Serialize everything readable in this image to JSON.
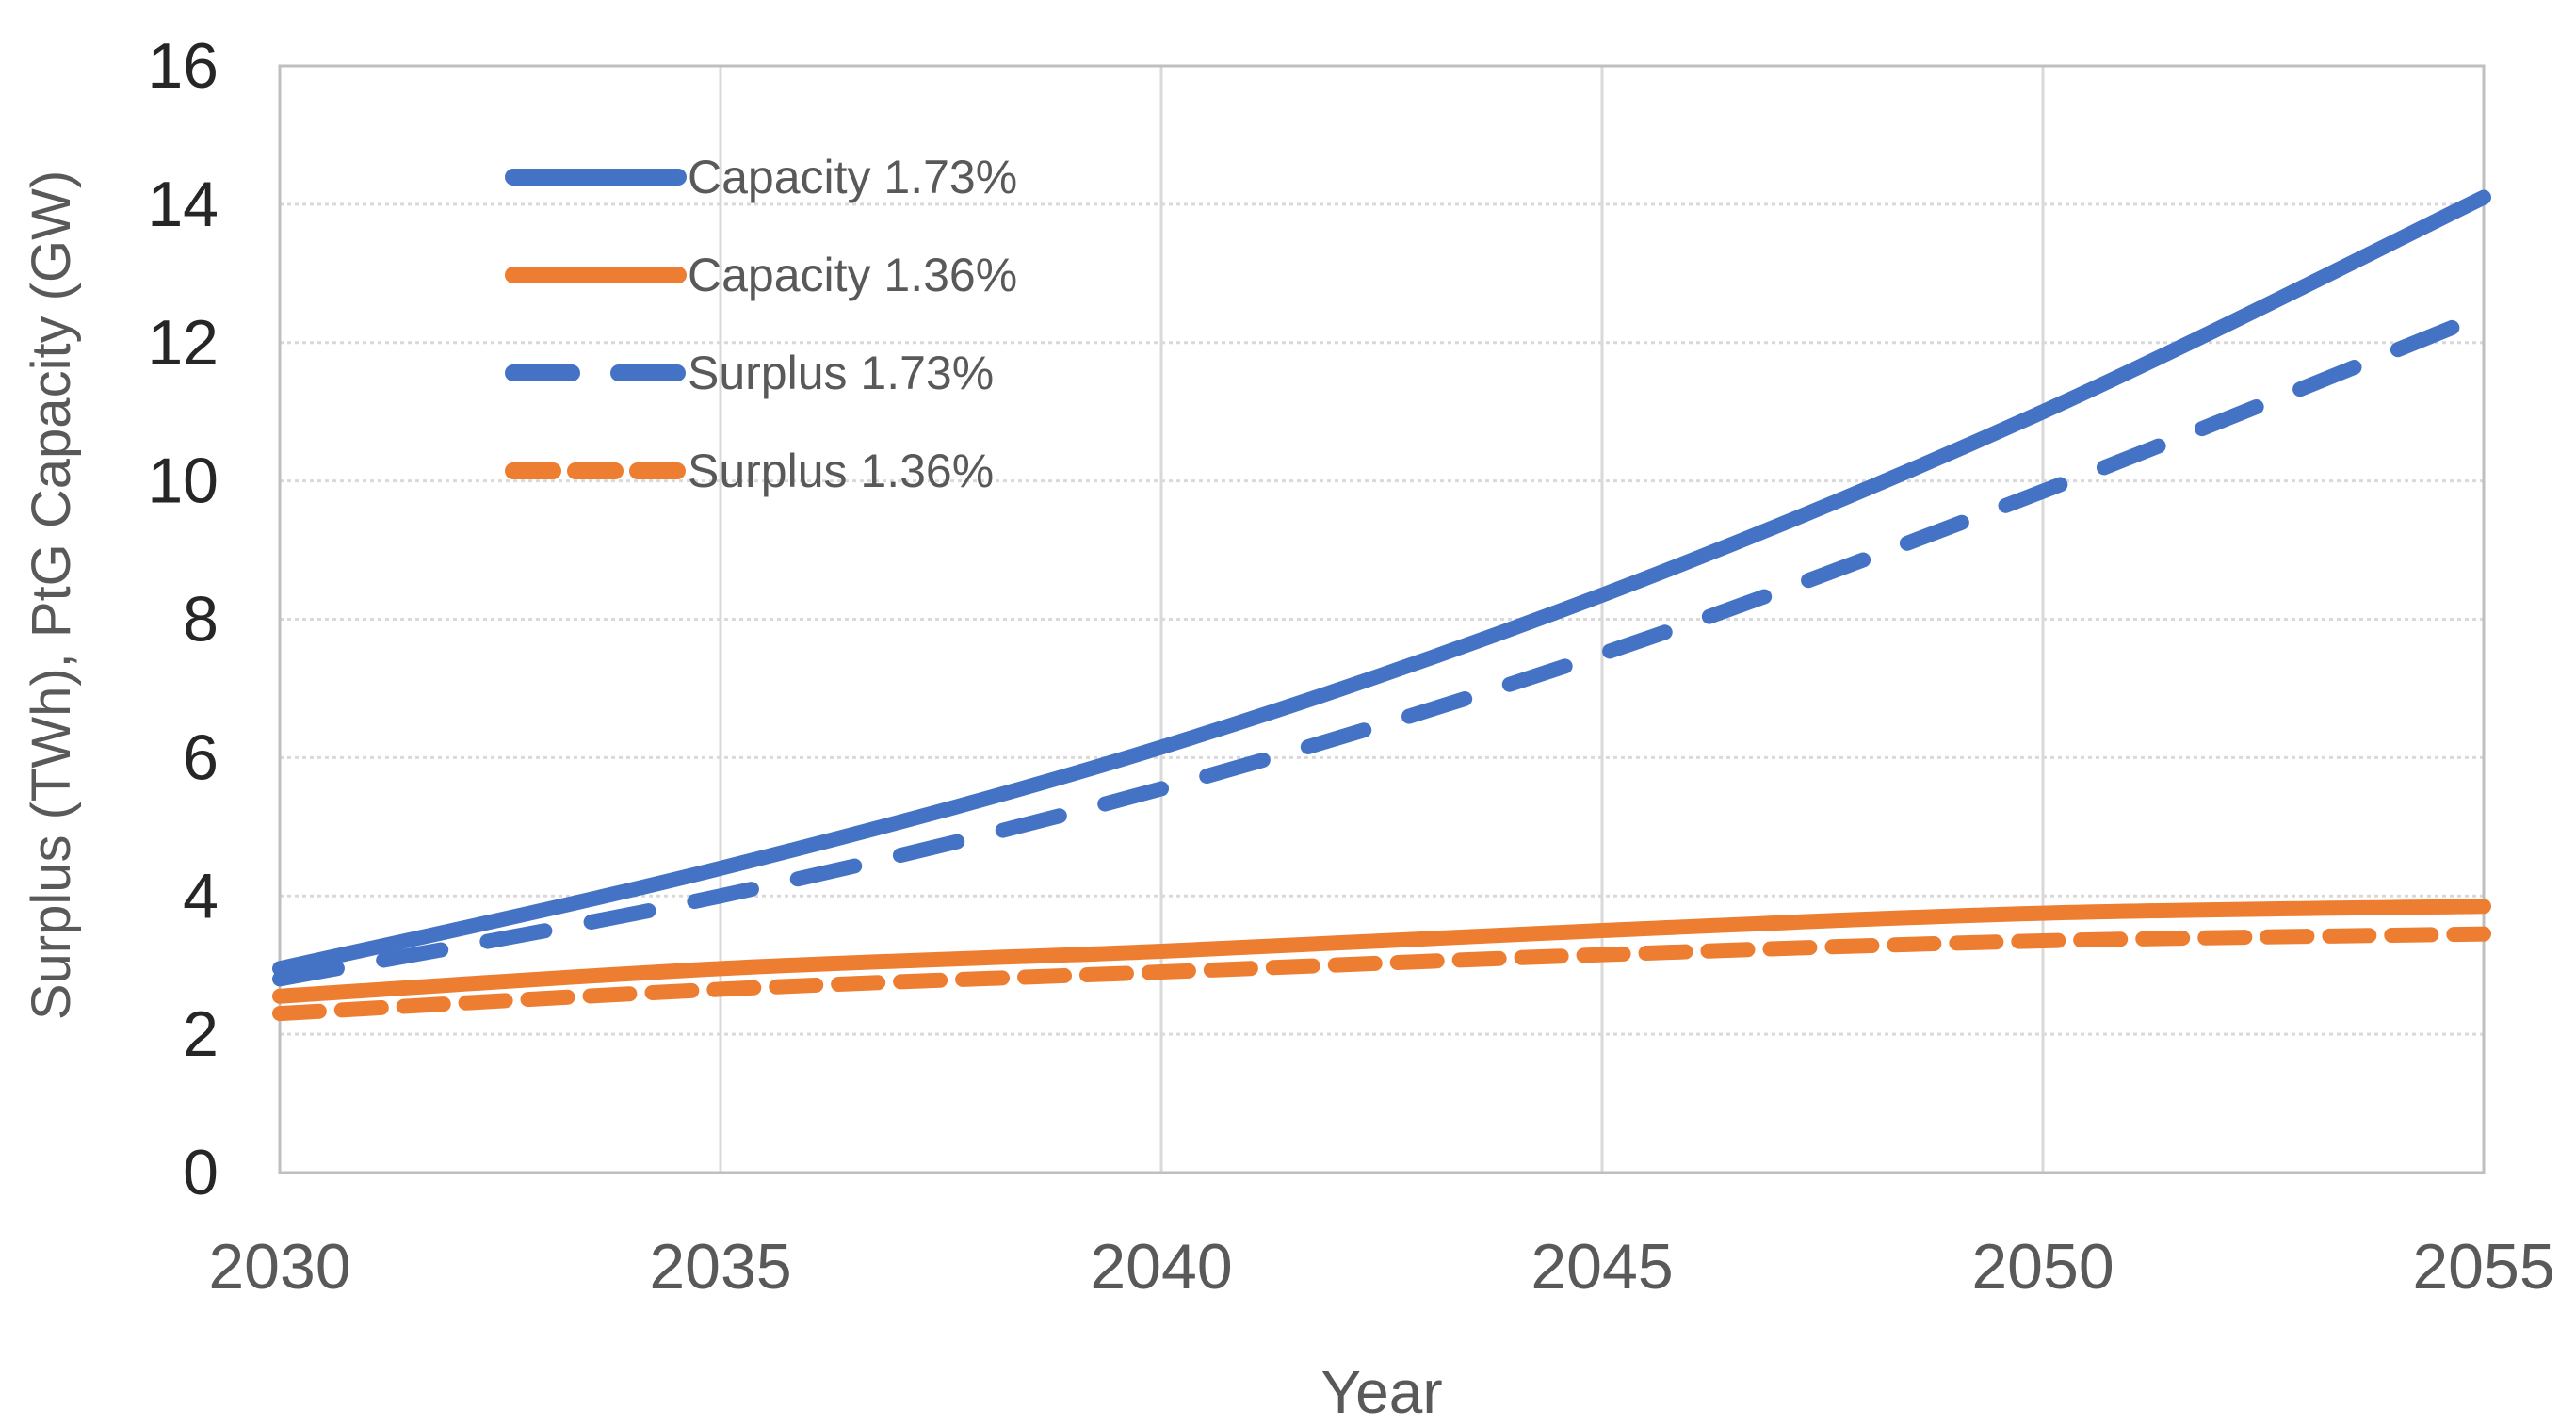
{
  "figure": {
    "background": "#FFFFFF"
  },
  "chart_data": {
    "type": "line",
    "title": "",
    "xlabel": "Year",
    "ylabel": "Surplus (TWh), PtG Capacity (GW)",
    "x": [
      2030,
      2035,
      2040,
      2045,
      2050,
      2055
    ],
    "x_tick_labels": [
      "2030",
      "2035",
      "2040",
      "2045",
      "2050",
      "2055"
    ],
    "xlim": [
      2030,
      2055
    ],
    "ylim": [
      0,
      16
    ],
    "y_ticks": [
      0,
      2,
      4,
      6,
      8,
      10,
      12,
      14,
      16
    ],
    "grid": true,
    "legend_position": "inside-top-left",
    "series": [
      {
        "name": "Capacity 1.73%",
        "color": "#4472C4",
        "dash": "solid",
        "dash_pattern": null,
        "values": [
          2.95,
          4.4,
          6.15,
          8.35,
          11.0,
          14.1
        ]
      },
      {
        "name": "Capacity 1.36%",
        "color": "#ED7D31",
        "dash": "solid",
        "dash_pattern": null,
        "values": [
          2.55,
          2.95,
          3.2,
          3.5,
          3.75,
          3.85
        ]
      },
      {
        "name": "Surplus 1.73%",
        "color": "#4472C4",
        "dash": "dashed",
        "dash_pattern": [
          62,
          50
        ],
        "values": [
          2.8,
          4.0,
          5.55,
          7.5,
          9.85,
          12.4
        ]
      },
      {
        "name": "Surplus 1.36%",
        "color": "#ED7D31",
        "dash": "dashed",
        "dash_pattern": [
          42,
          24
        ],
        "values": [
          2.3,
          2.65,
          2.9,
          3.15,
          3.35,
          3.45
        ]
      }
    ],
    "styles": {
      "grid_color": "#D9D9D9",
      "border_color": "#BFBFBF",
      "y_tick_color": "#262626",
      "x_tick_color": "#595959",
      "axis_title_color": "#595959",
      "legend_text_color": "#595959",
      "line_width": 16
    }
  }
}
